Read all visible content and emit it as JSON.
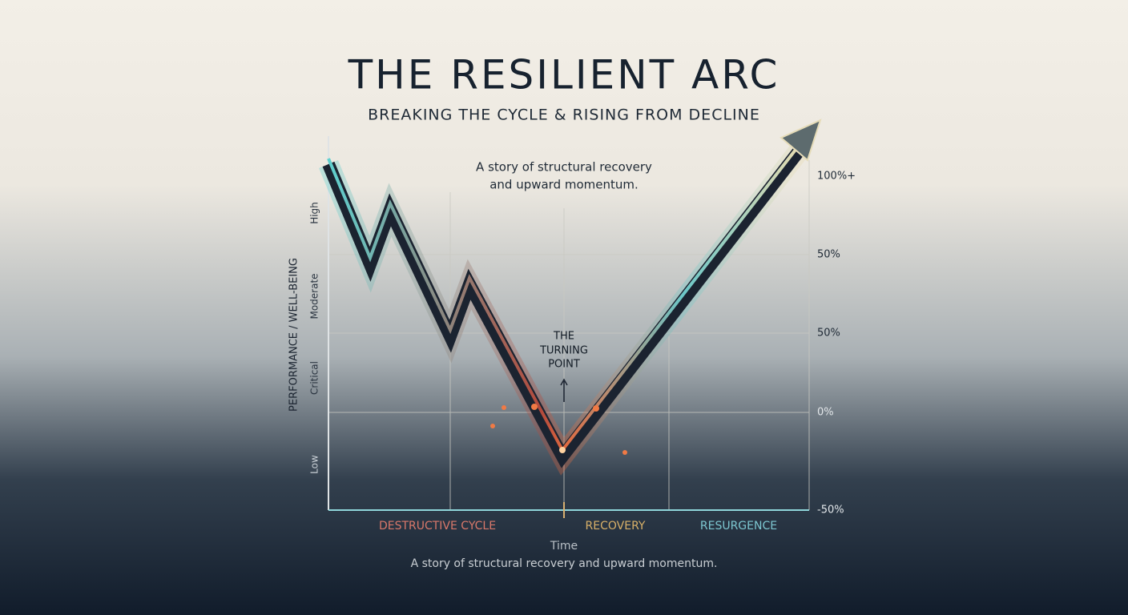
{
  "header": {
    "title": "THE RESILIENT ARC",
    "subtitle": "BREAKING THE CYCLE & RISING FROM DECLINE"
  },
  "annotation": [
    "A story of structural recovery",
    "and upward momentum."
  ],
  "turning_point": [
    "THE",
    "TURNING",
    "POINT"
  ],
  "y_axis": {
    "title": "PERFORMANCE / WELL-BEING",
    "levels": [
      "High",
      "Moderate",
      "Critical",
      "Low"
    ],
    "right_labels": [
      "100%+",
      "50%",
      "50%",
      "0%",
      "-50%"
    ]
  },
  "phases": [
    "DESTRUCTIVE CYCLE",
    "RECOVERY",
    "RESURGENCE"
  ],
  "x_axis": {
    "title": "Time"
  },
  "caption": "A story of structural recovery and upward momentum."
}
